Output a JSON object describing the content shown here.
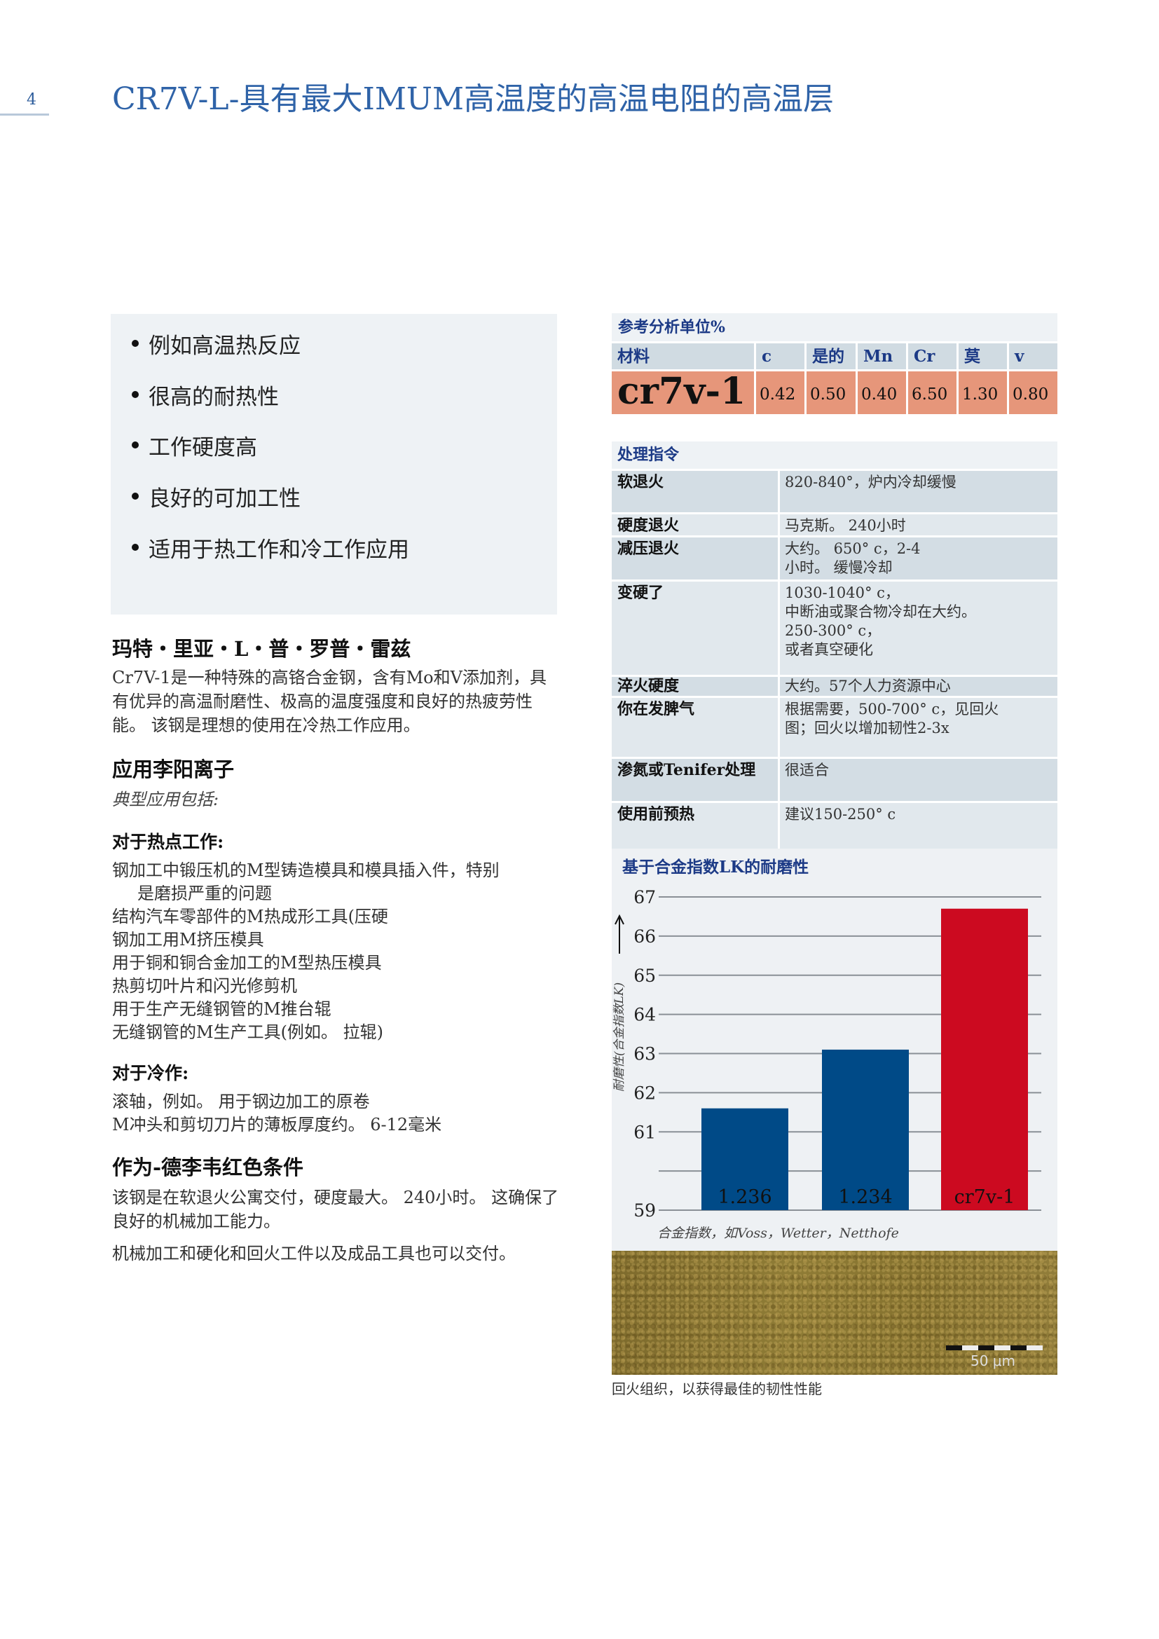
{
  "page_number": "4",
  "title": "CR7V-L-具有最大IMUM高温度的高温电阻的高温层",
  "features": [
    "例如高温热反应",
    "很高的耐热性",
    "工作硬度高",
    "良好的可加工性",
    "适用于热工作和冷工作应用"
  ],
  "description": {
    "heading": "玛特・里亚・L・普・罗普・雷兹",
    "text": "Cr7V-1是一种特殊的高铬合金钢，含有Mo和V添加剂，具有优异的高温耐磨性、极高的温度强度和良好的热疲劳性能。 该钢是理想的使用在冷热工作应用。"
  },
  "applications": {
    "heading": "应用李阳离子",
    "intro": "典型应用包括:",
    "hot_heading": "对于热点工作:",
    "hot_items": [
      "钢加工中锻压机的M型铸造模具和模具插入件，特别",
      "是磨损严重的问题",
      "结构汽车零部件的M热成形工具(压硬",
      "钢加工用M挤压模具",
      "用于铜和铜合金加工的M型热压模具",
      "热剪切叶片和闪光修剪机",
      "用于生产无缝钢管的M推台辊",
      "无缝钢管的M生产工具(例如。 拉辊)"
    ],
    "cold_heading": "对于冷作:",
    "cold_items": [
      "滚轴，例如。 用于钢边加工的原卷",
      "M冲头和剪切刀片的薄板厚度约。 6-12毫米"
    ]
  },
  "delivery": {
    "heading": "作为-德李韦红色条件",
    "p1": "该钢是在软退火公寓交付，硬度最大。 240小时。 这确保了良好的机械加工能力。",
    "p2": "机械加工和硬化和回火工件以及成品工具也可以交付。"
  },
  "analysis": {
    "title": "参考分析单位%",
    "headers": [
      "材料",
      "c",
      "是的",
      "Mn",
      "Cr",
      "莫",
      "v"
    ],
    "values": [
      "cr7v-1",
      "0.42",
      "0.50",
      "0.40",
      "6.50",
      "1.30",
      "0.80"
    ]
  },
  "treatment": {
    "title": "处理指令",
    "rows": [
      {
        "k": "软退火",
        "v": "820-840°，炉内冷却缓慢"
      },
      {
        "k": "硬度退火",
        "v": "马克斯。 240小时"
      },
      {
        "k": "减压退火",
        "v": "大约。 650° c，2-4\n小时。 缓慢冷却"
      },
      {
        "k": "变硬了",
        "v": "1030-1040° c，\n中断油或聚合物冷却在大约。\n250-300° c，\n或者真空硬化"
      },
      {
        "k": "淬火硬度",
        "v": "大约。57个人力资源中心"
      },
      {
        "k": "你在发脾气",
        "v": "根据需要，500-700° c，见回火\n图；回火以增加韧性2-3x"
      },
      {
        "k": "渗氮或Tenifer处理",
        "v": "很适合"
      },
      {
        "k": "使用前预热",
        "v": "建议150-250° c"
      }
    ]
  },
  "chart_data": {
    "type": "bar",
    "title": "基于合金指数LK的耐磨性",
    "ylabel": "耐磨性(合金指数LK)",
    "xlabel": "合金指数，如Voss，Wetter，Netthofe",
    "categories": [
      "1.236",
      "1.234",
      "cr7v-1"
    ],
    "values": [
      61.6,
      63.1,
      66.7
    ],
    "colors": [
      "#004a87",
      "#004a87",
      "#cc0a20"
    ],
    "ylim": [
      59,
      67
    ],
    "yticks": [
      59,
      60,
      61,
      62,
      63,
      64,
      65,
      66,
      67
    ],
    "ytick_labels": [
      "59",
      "",
      "61",
      "62",
      "63",
      "64",
      "65",
      "66",
      "67"
    ],
    "grid": true
  },
  "micrograph": {
    "scale_label": "50 μm",
    "caption": "回火组织，以获得最佳的韧性性能"
  }
}
